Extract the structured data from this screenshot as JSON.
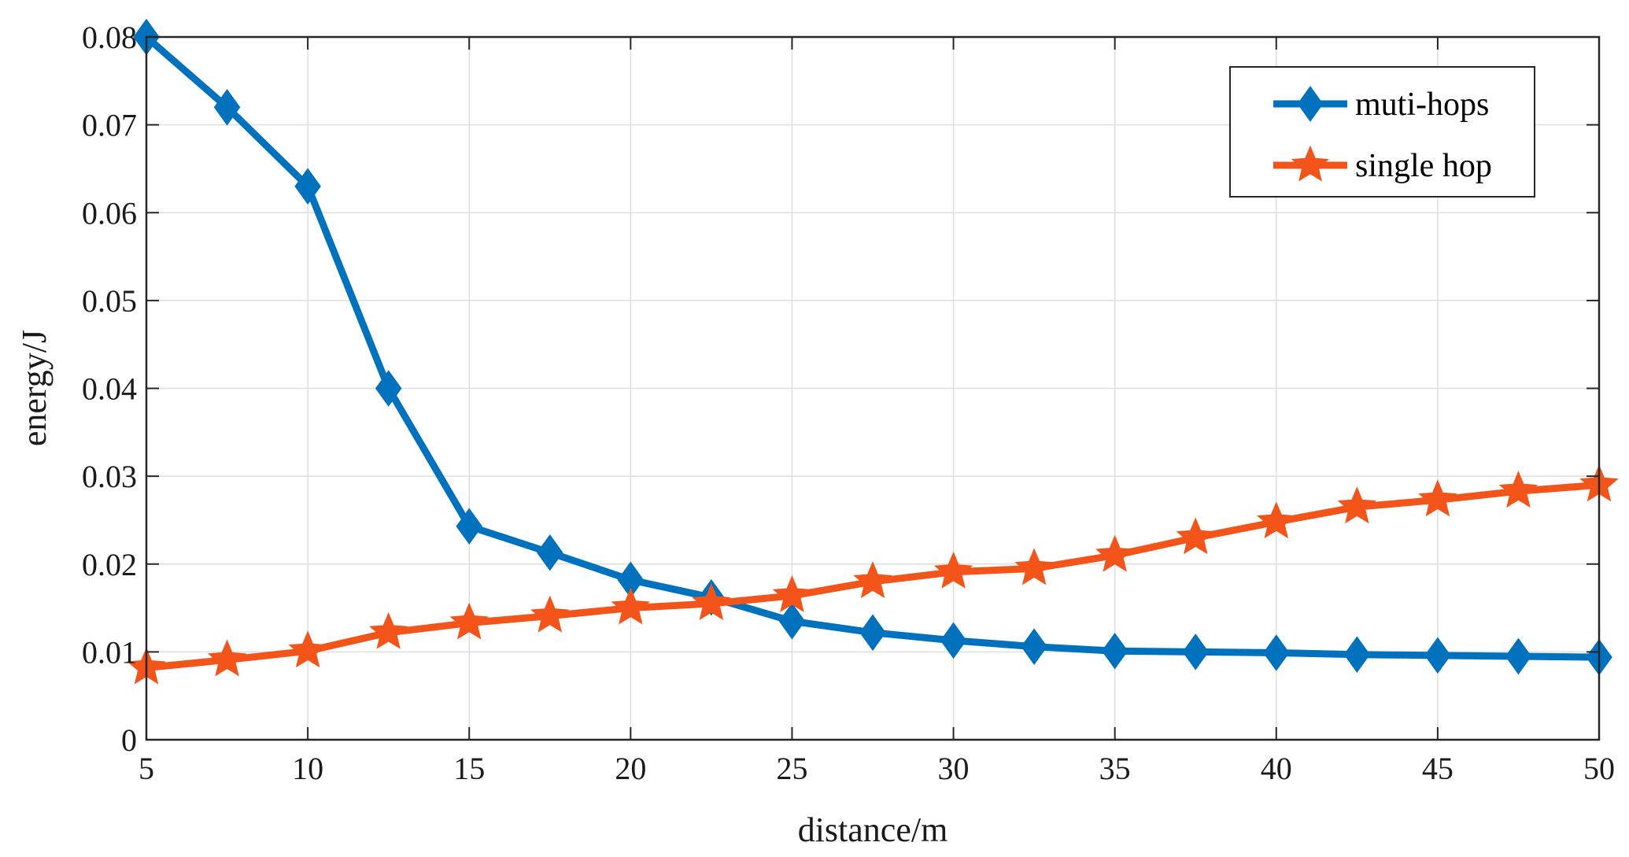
{
  "chart_data": {
    "type": "line",
    "xlabel": "distance/m",
    "ylabel": "energy/J",
    "xlim": [
      5,
      50
    ],
    "ylim": [
      0,
      0.08
    ],
    "xticks": [
      "5",
      "10",
      "15",
      "20",
      "25",
      "30",
      "35",
      "40",
      "45",
      "50"
    ],
    "xtick_values": [
      5,
      10,
      15,
      20,
      25,
      30,
      35,
      40,
      45,
      50
    ],
    "yticks": [
      "0",
      "0.01",
      "0.02",
      "0.03",
      "0.04",
      "0.05",
      "0.06",
      "0.07",
      "0.08"
    ],
    "ytick_values": [
      0,
      0.01,
      0.02,
      0.03,
      0.04,
      0.05,
      0.06,
      0.07,
      0.08
    ],
    "grid": true,
    "legend_position": "top-right",
    "x": [
      5,
      7.5,
      10,
      12.5,
      15,
      17.5,
      20,
      22.5,
      25,
      27.5,
      30,
      32.5,
      35,
      37.5,
      40,
      42.5,
      45,
      47.5,
      50
    ],
    "series": [
      {
        "name": "muti-hops",
        "color": "#0072BD",
        "marker": "diamond",
        "values": [
          0.08,
          0.072,
          0.063,
          0.04,
          0.0243,
          0.0213,
          0.0182,
          0.0162,
          0.0135,
          0.0122,
          0.0113,
          0.0106,
          0.0101,
          0.01,
          0.0099,
          0.0097,
          0.0096,
          0.0095,
          0.0094
        ]
      },
      {
        "name": "single hop",
        "color": "#F2541A",
        "marker": "star",
        "values": [
          0.0082,
          0.0091,
          0.0101,
          0.0122,
          0.0133,
          0.0141,
          0.015,
          0.0155,
          0.0164,
          0.018,
          0.0191,
          0.0195,
          0.021,
          0.023,
          0.0248,
          0.0265,
          0.0273,
          0.0283,
          0.029
        ]
      }
    ]
  }
}
